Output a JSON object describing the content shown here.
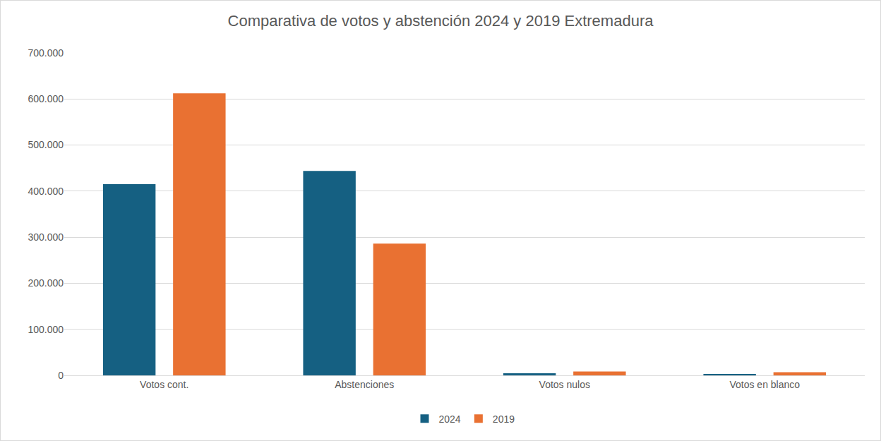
{
  "chart_data": {
    "type": "bar",
    "title": "Comparativa de votos y abstención 2024 y 2019 Extremadura",
    "categories": [
      "Votos cont.",
      "Abstenciones",
      "Votos nulos",
      "Votos en blanco"
    ],
    "series": [
      {
        "name": "2024",
        "color": "#156082",
        "values": [
          415000,
          444000,
          4500,
          3000
        ]
      },
      {
        "name": "2019",
        "color": "#e97132",
        "values": [
          612500,
          286000,
          8500,
          7000
        ]
      }
    ],
    "ylim": [
      0,
      700000
    ],
    "yticks": [
      0,
      {
        "value": 100000,
        "label": "100.000"
      },
      {
        "value": 200000,
        "label": "200.000"
      },
      {
        "value": 300000,
        "label": "300.000"
      },
      {
        "value": 400000,
        "label": "400.000"
      },
      {
        "value": 500000,
        "label": "500.000"
      },
      {
        "value": 600000,
        "label": "600.000"
      },
      {
        "value": 700000,
        "label": "700.000"
      }
    ],
    "grid": true,
    "legend": "bottom"
  }
}
